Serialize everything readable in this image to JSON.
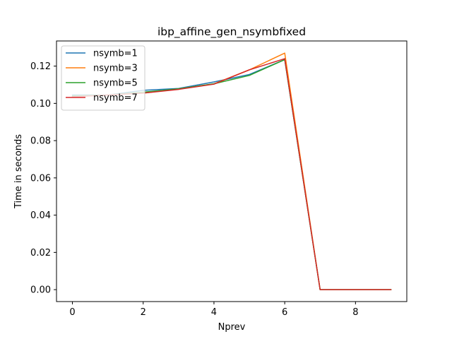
{
  "chart_data": {
    "type": "line",
    "title": "ibp_affine_gen_nsymbfixed",
    "xlabel": "Nprev",
    "ylabel": "Time in seconds",
    "x": [
      0,
      1,
      2,
      3,
      4,
      5,
      6,
      7,
      8,
      9
    ],
    "xlim": [
      -0.45,
      9.45
    ],
    "ylim": [
      -0.0064,
      0.1335
    ],
    "xticks": [
      0,
      2,
      4,
      6,
      8
    ],
    "xtick_labels": [
      "0",
      "2",
      "4",
      "6",
      "8"
    ],
    "yticks": [
      0.0,
      0.02,
      0.04,
      0.06,
      0.08,
      0.1,
      0.12
    ],
    "ytick_labels": [
      "0.00",
      "0.02",
      "0.04",
      "0.06",
      "0.08",
      "0.10",
      "0.12"
    ],
    "grid": false,
    "legend_position": "upper-left",
    "series": [
      {
        "name": "nsymb=1",
        "color": "#1f77b4",
        "values": [
          0.1045,
          0.1045,
          0.107,
          0.108,
          0.1115,
          0.1155,
          0.1235,
          0.0,
          0.0,
          0.0
        ]
      },
      {
        "name": "nsymb=3",
        "color": "#ff7f0e",
        "values": [
          0.1035,
          0.1045,
          0.1055,
          0.1078,
          0.1105,
          0.118,
          0.127,
          0.0,
          0.0,
          0.0
        ]
      },
      {
        "name": "nsymb=5",
        "color": "#2ca02c",
        "values": [
          0.104,
          0.1045,
          0.106,
          0.1078,
          0.1105,
          0.115,
          0.1235,
          0.0,
          0.0,
          0.0
        ]
      },
      {
        "name": "nsymb=7",
        "color": "#d62728",
        "values": [
          0.1035,
          0.1045,
          0.1055,
          0.1075,
          0.1103,
          0.118,
          0.124,
          0.0,
          0.0,
          0.0
        ]
      }
    ]
  }
}
